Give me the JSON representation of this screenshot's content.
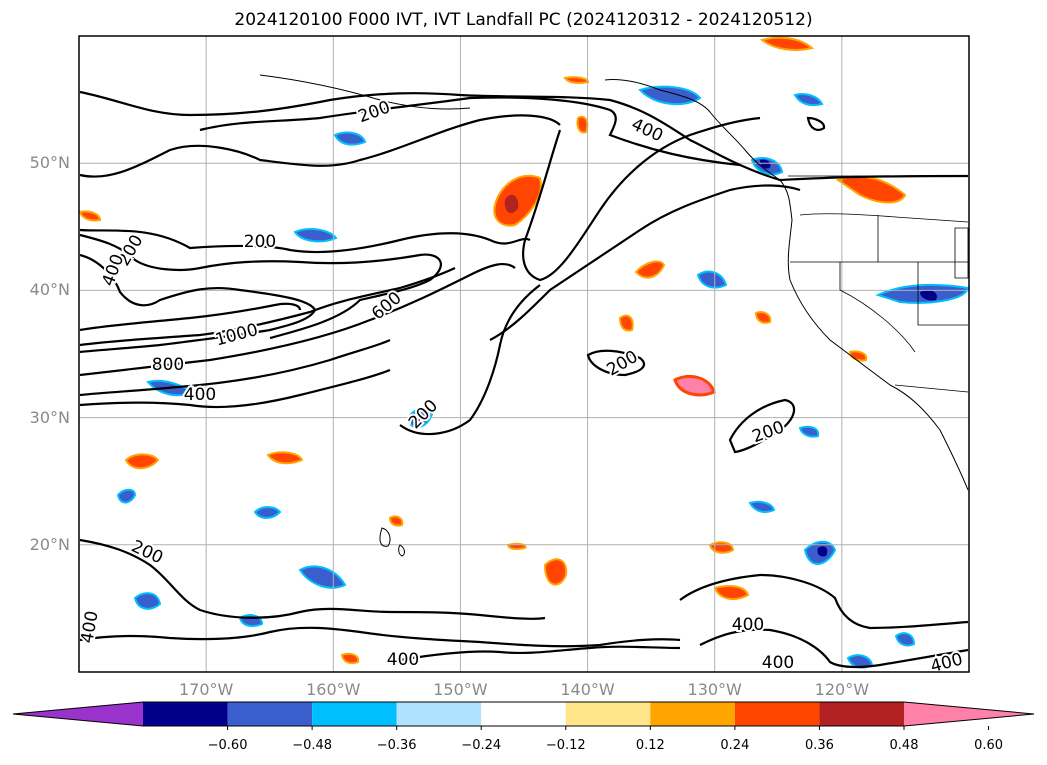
{
  "title": "2024120100 F000 IVT, IVT Landfall PC (2024120312 - 2024120512)",
  "map": {
    "lat_labels": [
      {
        "text": "50°N",
        "lat": 50
      },
      {
        "text": "40°N",
        "lat": 40
      },
      {
        "text": "30°N",
        "lat": 30
      },
      {
        "text": "20°N",
        "lat": 20
      }
    ],
    "lon_labels": [
      {
        "text": "170°W",
        "lon": -170
      },
      {
        "text": "160°W",
        "lon": -160
      },
      {
        "text": "150°W",
        "lon": -150
      },
      {
        "text": "140°W",
        "lon": -140
      },
      {
        "text": "130°W",
        "lon": -130
      },
      {
        "text": "120°W",
        "lon": -120
      }
    ],
    "extent": {
      "lon_min": -180,
      "lon_max": -110,
      "lat_min": 10,
      "lat_max": 60
    },
    "ivt_contour_labels": [
      "200",
      "400",
      "200",
      "200",
      "400",
      "600",
      "1000",
      "800",
      "400",
      "200",
      "200",
      "200",
      "200",
      "400",
      "400",
      "400",
      "400"
    ]
  },
  "colorbar": {
    "ticks": [
      "−0.60",
      "−0.48",
      "−0.36",
      "−0.24",
      "−0.12",
      "0.12",
      "0.24",
      "0.36",
      "0.48",
      "0.60"
    ],
    "colors": [
      "#9933cc",
      "#00008b",
      "#3a5fcd",
      "#00bfff",
      "#b0e2ff",
      "#ffffff",
      "#ffe68a",
      "#ffa500",
      "#ff4500",
      "#b22222",
      "#ff80a8"
    ],
    "extend": "both"
  }
}
